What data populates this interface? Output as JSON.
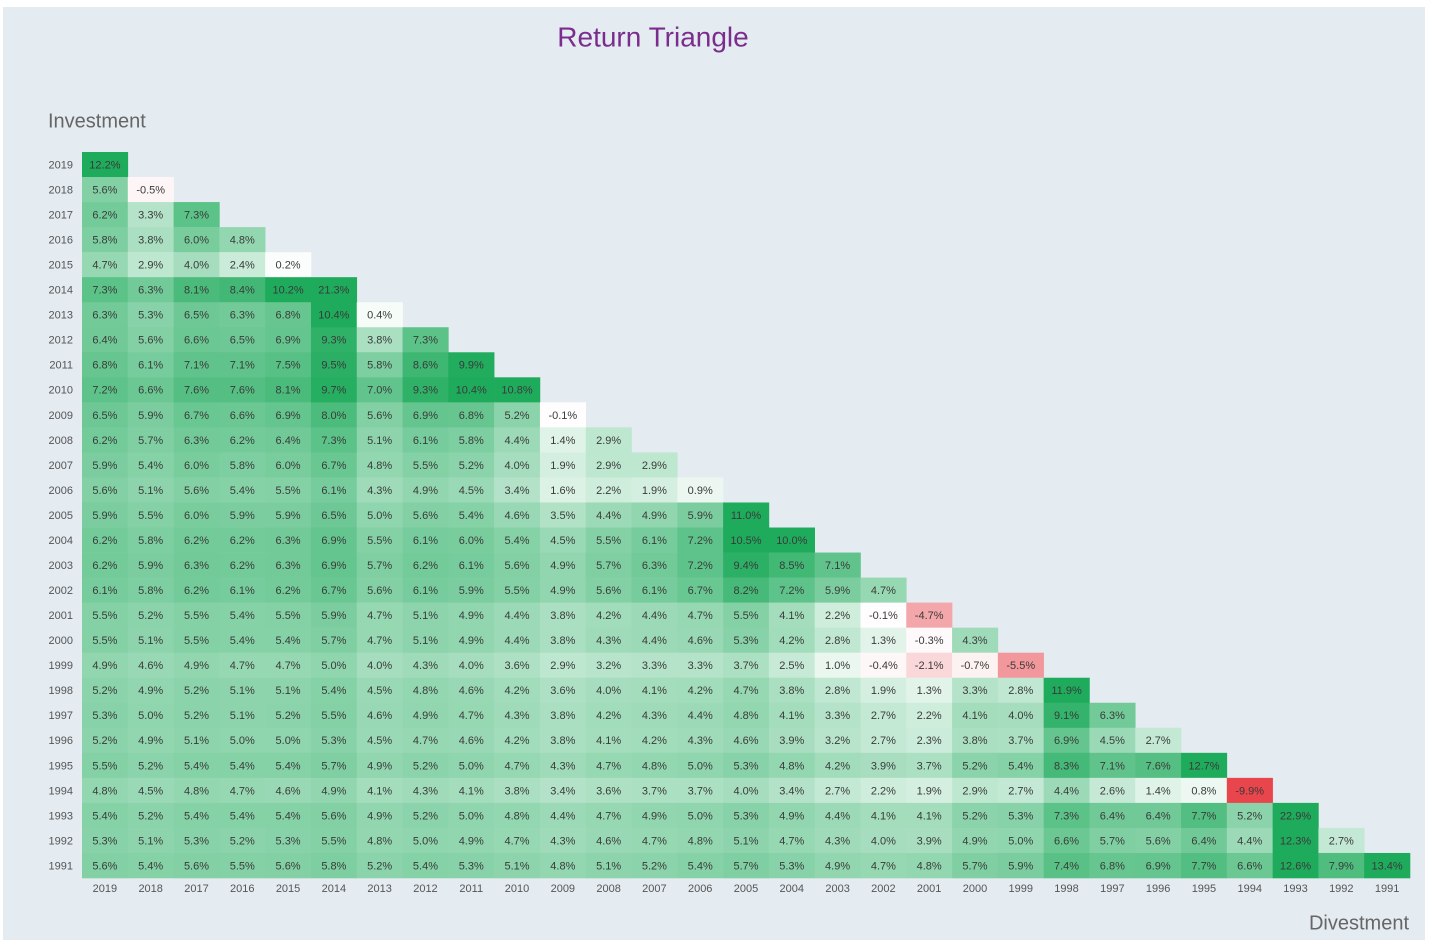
{
  "chart_data": {
    "type": "heatmap",
    "title": "Return Triangle",
    "x_label": "Divestment",
    "y_label": "Investment",
    "categories": [
      "2019",
      "2018",
      "2017",
      "2016",
      "2015",
      "2014",
      "2013",
      "2012",
      "2011",
      "2010",
      "2009",
      "2008",
      "2007",
      "2006",
      "2005",
      "2004",
      "2003",
      "2002",
      "2001",
      "2000",
      "1999",
      "1998",
      "1997",
      "1996",
      "1995",
      "1994",
      "1993",
      "1992",
      "1991"
    ],
    "rows": [
      "2019",
      "2018",
      "2017",
      "2016",
      "2015",
      "2014",
      "2013",
      "2012",
      "2011",
      "2010",
      "2009",
      "2008",
      "2007",
      "2006",
      "2005",
      "2004",
      "2003",
      "2002",
      "2001",
      "2000",
      "1999",
      "1998",
      "1997",
      "1996",
      "1995",
      "1994",
      "1993",
      "1992",
      "1991"
    ],
    "color_scale": {
      "min": -10,
      "max": 10,
      "colors": [
        "#e8434b",
        "#ffffff",
        "#1fab5c"
      ]
    },
    "values": [
      [
        12.2
      ],
      [
        5.6,
        -0.5
      ],
      [
        6.2,
        3.3,
        7.3
      ],
      [
        5.8,
        3.8,
        6.0,
        4.8
      ],
      [
        4.7,
        2.9,
        4.0,
        2.4,
        0.2
      ],
      [
        7.3,
        6.3,
        8.1,
        8.4,
        10.2,
        21.3
      ],
      [
        6.3,
        5.3,
        6.5,
        6.3,
        6.8,
        10.4,
        0.4
      ],
      [
        6.4,
        5.6,
        6.6,
        6.5,
        6.9,
        9.3,
        3.8,
        7.3
      ],
      [
        6.8,
        6.1,
        7.1,
        7.1,
        7.5,
        9.5,
        5.8,
        8.6,
        9.9
      ],
      [
        7.2,
        6.6,
        7.6,
        7.6,
        8.1,
        9.7,
        7.0,
        9.3,
        10.4,
        10.8
      ],
      [
        6.5,
        5.9,
        6.7,
        6.6,
        6.9,
        8.0,
        5.6,
        6.9,
        6.8,
        5.2,
        -0.1
      ],
      [
        6.2,
        5.7,
        6.3,
        6.2,
        6.4,
        7.3,
        5.1,
        6.1,
        5.8,
        4.4,
        1.4,
        2.9
      ],
      [
        5.9,
        5.4,
        6.0,
        5.8,
        6.0,
        6.7,
        4.8,
        5.5,
        5.2,
        4.0,
        1.9,
        2.9,
        2.9
      ],
      [
        5.6,
        5.1,
        5.6,
        5.4,
        5.5,
        6.1,
        4.3,
        4.9,
        4.5,
        3.4,
        1.6,
        2.2,
        1.9,
        0.9
      ],
      [
        5.9,
        5.5,
        6.0,
        5.9,
        5.9,
        6.5,
        5.0,
        5.6,
        5.4,
        4.6,
        3.5,
        4.4,
        4.9,
        5.9,
        11.0
      ],
      [
        6.2,
        5.8,
        6.2,
        6.2,
        6.3,
        6.9,
        5.5,
        6.1,
        6.0,
        5.4,
        4.5,
        5.5,
        6.1,
        7.2,
        10.5,
        10.0
      ],
      [
        6.2,
        5.9,
        6.3,
        6.2,
        6.3,
        6.9,
        5.7,
        6.2,
        6.1,
        5.6,
        4.9,
        5.7,
        6.3,
        7.2,
        9.4,
        8.5,
        7.1
      ],
      [
        6.1,
        5.8,
        6.2,
        6.1,
        6.2,
        6.7,
        5.6,
        6.1,
        5.9,
        5.5,
        4.9,
        5.6,
        6.1,
        6.7,
        8.2,
        7.2,
        5.9,
        4.7
      ],
      [
        5.5,
        5.2,
        5.5,
        5.4,
        5.5,
        5.9,
        4.7,
        5.1,
        4.9,
        4.4,
        3.8,
        4.2,
        4.4,
        4.7,
        5.5,
        4.1,
        2.2,
        -0.1,
        -4.7
      ],
      [
        5.5,
        5.1,
        5.5,
        5.4,
        5.4,
        5.7,
        4.7,
        5.1,
        4.9,
        4.4,
        3.8,
        4.3,
        4.4,
        4.6,
        5.3,
        4.2,
        2.8,
        1.3,
        -0.3,
        4.3
      ],
      [
        4.9,
        4.6,
        4.9,
        4.7,
        4.7,
        5.0,
        4.0,
        4.3,
        4.0,
        3.6,
        2.9,
        3.2,
        3.3,
        3.3,
        3.7,
        2.5,
        1.0,
        -0.4,
        -2.1,
        -0.7,
        -5.5
      ],
      [
        5.2,
        4.9,
        5.2,
        5.1,
        5.1,
        5.4,
        4.5,
        4.8,
        4.6,
        4.2,
        3.6,
        4.0,
        4.1,
        4.2,
        4.7,
        3.8,
        2.8,
        1.9,
        1.3,
        3.3,
        2.8,
        11.9
      ],
      [
        5.3,
        5.0,
        5.2,
        5.1,
        5.2,
        5.5,
        4.6,
        4.9,
        4.7,
        4.3,
        3.8,
        4.2,
        4.3,
        4.4,
        4.8,
        4.1,
        3.3,
        2.7,
        2.2,
        4.1,
        4.0,
        9.1,
        6.3
      ],
      [
        5.2,
        4.9,
        5.1,
        5.0,
        5.0,
        5.3,
        4.5,
        4.7,
        4.6,
        4.2,
        3.8,
        4.1,
        4.2,
        4.3,
        4.6,
        3.9,
        3.2,
        2.7,
        2.3,
        3.8,
        3.7,
        6.9,
        4.5,
        2.7
      ],
      [
        5.5,
        5.2,
        5.4,
        5.4,
        5.4,
        5.7,
        4.9,
        5.2,
        5.0,
        4.7,
        4.3,
        4.7,
        4.8,
        5.0,
        5.3,
        4.8,
        4.2,
        3.9,
        3.7,
        5.2,
        5.4,
        8.3,
        7.1,
        7.6,
        12.7
      ],
      [
        4.8,
        4.5,
        4.8,
        4.7,
        4.6,
        4.9,
        4.1,
        4.3,
        4.1,
        3.8,
        3.4,
        3.6,
        3.7,
        3.7,
        4.0,
        3.4,
        2.7,
        2.2,
        1.9,
        2.9,
        2.7,
        4.4,
        2.6,
        1.4,
        0.8,
        -9.9
      ],
      [
        5.4,
        5.2,
        5.4,
        5.4,
        5.4,
        5.6,
        4.9,
        5.2,
        5.0,
        4.8,
        4.4,
        4.7,
        4.9,
        5.0,
        5.3,
        4.9,
        4.4,
        4.1,
        4.1,
        5.2,
        5.3,
        7.3,
        6.4,
        6.4,
        7.7,
        5.2,
        22.9
      ],
      [
        5.3,
        5.1,
        5.3,
        5.2,
        5.3,
        5.5,
        4.8,
        5.0,
        4.9,
        4.7,
        4.3,
        4.6,
        4.7,
        4.8,
        5.1,
        4.7,
        4.3,
        4.0,
        3.9,
        4.9,
        5.0,
        6.6,
        5.7,
        5.6,
        6.4,
        4.4,
        12.3,
        2.7
      ],
      [
        5.6,
        5.4,
        5.6,
        5.5,
        5.6,
        5.8,
        5.2,
        5.4,
        5.3,
        5.1,
        4.8,
        5.1,
        5.2,
        5.4,
        5.7,
        5.3,
        4.9,
        4.7,
        4.8,
        5.7,
        5.9,
        7.4,
        6.8,
        6.9,
        7.7,
        6.6,
        12.6,
        7.9,
        13.4
      ]
    ],
    "value_labels": [
      [
        "12.2%"
      ],
      [
        "5.6%",
        "-0.5%"
      ],
      [
        "6.2%",
        "3.3%",
        "7.3%"
      ],
      [
        "5.8%",
        "3.8%",
        "6.0%",
        "4.8%"
      ],
      [
        "4.7%",
        "2.9%",
        "4.0%",
        "2.4%",
        "0.2%"
      ],
      [
        "7.3%",
        "6.3%",
        "8.1%",
        "8.4%",
        "10.2%",
        "21.3%"
      ],
      [
        "6.3%",
        "5.3%",
        "6.5%",
        "6.3%",
        "6.8%",
        "10.4%",
        "0.4%"
      ],
      [
        "6.4%",
        "5.6%",
        "6.6%",
        "6.5%",
        "6.9%",
        "9.3%",
        "3.8%",
        "7.3%"
      ],
      [
        "6.8%",
        "6.1%",
        "7.1%",
        "7.1%",
        "7.5%",
        "9.5%",
        "5.8%",
        "8.6%",
        "9.9%"
      ],
      [
        "7.2%",
        "6.6%",
        "7.6%",
        "7.6%",
        "8.1%",
        "9.7%",
        "7.0%",
        "9.3%",
        "10.4%",
        "10.8%"
      ],
      [
        "6.5%",
        "5.9%",
        "6.7%",
        "6.6%",
        "6.9%",
        "8.0%",
        "5.6%",
        "6.9%",
        "6.8%",
        "5.2%",
        "-0.1%"
      ],
      [
        "6.2%",
        "5.7%",
        "6.3%",
        "6.2%",
        "6.4%",
        "7.3%",
        "5.1%",
        "6.1%",
        "5.8%",
        "4.4%",
        "1.4%",
        "2.9%"
      ],
      [
        "5.9%",
        "5.4%",
        "6.0%",
        "5.8%",
        "6.0%",
        "6.7%",
        "4.8%",
        "5.5%",
        "5.2%",
        "4.0%",
        "1.9%",
        "2.9%",
        "2.9%"
      ],
      [
        "5.6%",
        "5.1%",
        "5.6%",
        "5.4%",
        "5.5%",
        "6.1%",
        "4.3%",
        "4.9%",
        "4.5%",
        "3.4%",
        "1.6%",
        "2.2%",
        "1.9%",
        "0.9%"
      ],
      [
        "5.9%",
        "5.5%",
        "6.0%",
        "5.9%",
        "5.9%",
        "6.5%",
        "5.0%",
        "5.6%",
        "5.4%",
        "4.6%",
        "3.5%",
        "4.4%",
        "4.9%",
        "5.9%",
        "11.0%"
      ],
      [
        "6.2%",
        "5.8%",
        "6.2%",
        "6.2%",
        "6.3%",
        "6.9%",
        "5.5%",
        "6.1%",
        "6.0%",
        "5.4%",
        "4.5%",
        "5.5%",
        "6.1%",
        "7.2%",
        "10.5%",
        "10.0%"
      ],
      [
        "6.2%",
        "5.9%",
        "6.3%",
        "6.2%",
        "6.3%",
        "6.9%",
        "5.7%",
        "6.2%",
        "6.1%",
        "5.6%",
        "4.9%",
        "5.7%",
        "6.3%",
        "7.2%",
        "9.4%",
        "8.5%",
        "7.1%"
      ],
      [
        "6.1%",
        "5.8%",
        "6.2%",
        "6.1%",
        "6.2%",
        "6.7%",
        "5.6%",
        "6.1%",
        "5.9%",
        "5.5%",
        "4.9%",
        "5.6%",
        "6.1%",
        "6.7%",
        "8.2%",
        "7.2%",
        "5.9%",
        "4.7%"
      ],
      [
        "5.5%",
        "5.2%",
        "5.5%",
        "5.4%",
        "5.5%",
        "5.9%",
        "4.7%",
        "5.1%",
        "4.9%",
        "4.4%",
        "3.8%",
        "4.2%",
        "4.4%",
        "4.7%",
        "5.5%",
        "4.1%",
        "2.2%",
        "-0.1%",
        "-4.7%"
      ],
      [
        "5.5%",
        "5.1%",
        "5.5%",
        "5.4%",
        "5.4%",
        "5.7%",
        "4.7%",
        "5.1%",
        "4.9%",
        "4.4%",
        "3.8%",
        "4.3%",
        "4.4%",
        "4.6%",
        "5.3%",
        "4.2%",
        "2.8%",
        "1.3%",
        "-0.3%",
        "4.3%"
      ],
      [
        "4.9%",
        "4.6%",
        "4.9%",
        "4.7%",
        "4.7%",
        "5.0%",
        "4.0%",
        "4.3%",
        "4.0%",
        "3.6%",
        "2.9%",
        "3.2%",
        "3.3%",
        "3.3%",
        "3.7%",
        "2.5%",
        "1.0%",
        "-0.4%",
        "-2.1%",
        "-0.7%",
        "-5.5%"
      ],
      [
        "5.2%",
        "4.9%",
        "5.2%",
        "5.1%",
        "5.1%",
        "5.4%",
        "4.5%",
        "4.8%",
        "4.6%",
        "4.2%",
        "3.6%",
        "4.0%",
        "4.1%",
        "4.2%",
        "4.7%",
        "3.8%",
        "2.8%",
        "1.9%",
        "1.3%",
        "3.3%",
        "2.8%",
        "11.9%"
      ],
      [
        "5.3%",
        "5.0%",
        "5.2%",
        "5.1%",
        "5.2%",
        "5.5%",
        "4.6%",
        "4.9%",
        "4.7%",
        "4.3%",
        "3.8%",
        "4.2%",
        "4.3%",
        "4.4%",
        "4.8%",
        "4.1%",
        "3.3%",
        "2.7%",
        "2.2%",
        "4.1%",
        "4.0%",
        "9.1%",
        "6.3%"
      ],
      [
        "5.2%",
        "4.9%",
        "5.1%",
        "5.0%",
        "5.0%",
        "5.3%",
        "4.5%",
        "4.7%",
        "4.6%",
        "4.2%",
        "3.8%",
        "4.1%",
        "4.2%",
        "4.3%",
        "4.6%",
        "3.9%",
        "3.2%",
        "2.7%",
        "2.3%",
        "3.8%",
        "3.7%",
        "6.9%",
        "4.5%",
        "2.7%"
      ],
      [
        "5.5%",
        "5.2%",
        "5.4%",
        "5.4%",
        "5.4%",
        "5.7%",
        "4.9%",
        "5.2%",
        "5.0%",
        "4.7%",
        "4.3%",
        "4.7%",
        "4.8%",
        "5.0%",
        "5.3%",
        "4.8%",
        "4.2%",
        "3.9%",
        "3.7%",
        "5.2%",
        "5.4%",
        "8.3%",
        "7.1%",
        "7.6%",
        "12.7%"
      ],
      [
        "4.8%",
        "4.5%",
        "4.8%",
        "4.7%",
        "4.6%",
        "4.9%",
        "4.1%",
        "4.3%",
        "4.1%",
        "3.8%",
        "3.4%",
        "3.6%",
        "3.7%",
        "3.7%",
        "4.0%",
        "3.4%",
        "2.7%",
        "2.2%",
        "1.9%",
        "2.9%",
        "2.7%",
        "4.4%",
        "2.6%",
        "1.4%",
        "0.8%",
        "-9.9%"
      ],
      [
        "5.4%",
        "5.2%",
        "5.4%",
        "5.4%",
        "5.4%",
        "5.6%",
        "4.9%",
        "5.2%",
        "5.0%",
        "4.8%",
        "4.4%",
        "4.7%",
        "4.9%",
        "5.0%",
        "5.3%",
        "4.9%",
        "4.4%",
        "4.1%",
        "4.1%",
        "5.2%",
        "5.3%",
        "7.3%",
        "6.4%",
        "6.4%",
        "7.7%",
        "5.2%",
        "22.9%"
      ],
      [
        "5.3%",
        "5.1%",
        "5.3%",
        "5.2%",
        "5.3%",
        "5.5%",
        "4.8%",
        "5.0%",
        "4.9%",
        "4.7%",
        "4.3%",
        "4.6%",
        "4.7%",
        "4.8%",
        "5.1%",
        "4.7%",
        "4.3%",
        "4.0%",
        "3.9%",
        "4.9%",
        "5.0%",
        "6.6%",
        "5.7%",
        "5.6%",
        "6.4%",
        "4.4%",
        "12.3%",
        "2.7%"
      ],
      [
        "5.6%",
        "5.4%",
        "5.6%",
        "5.5%",
        "5.6%",
        "5.8%",
        "5.2%",
        "5.4%",
        "5.3%",
        "5.1%",
        "4.8%",
        "5.1%",
        "5.2%",
        "5.4%",
        "5.7%",
        "5.3%",
        "4.9%",
        "4.7%",
        "4.8%",
        "5.7%",
        "5.9%",
        "7.4%",
        "6.8%",
        "6.9%",
        "7.7%",
        "6.6%",
        "12.6%",
        "7.9%",
        "13.4%"
      ]
    ]
  }
}
